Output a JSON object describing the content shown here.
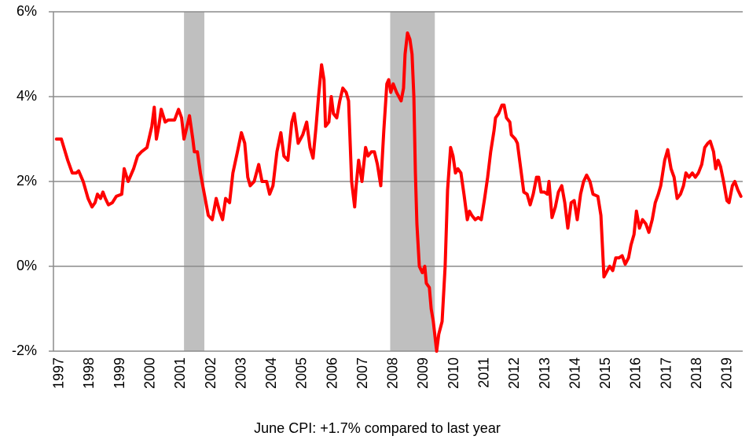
{
  "chart_data": {
    "type": "line",
    "caption": "June CPI: +1.7% compared to last year",
    "xlim": [
      1996.9,
      2019.6
    ],
    "xticks": [
      1997,
      1998,
      1999,
      2000,
      2001,
      2002,
      2003,
      2004,
      2005,
      2006,
      2007,
      2008,
      2009,
      2010,
      2011,
      2012,
      2013,
      2014,
      2015,
      2016,
      2017,
      2018,
      2019
    ],
    "ylim": [
      -2,
      6
    ],
    "yticks": [
      {
        "value": -2,
        "label": "-2%"
      },
      {
        "value": 0,
        "label": "0%"
      },
      {
        "value": 2,
        "label": "2%"
      },
      {
        "value": 4,
        "label": "4%"
      },
      {
        "value": 6,
        "label": "6%"
      }
    ],
    "grid": true,
    "shaded_regions": [
      [
        2001.2,
        2001.87
      ],
      [
        2007.99,
        2009.46
      ]
    ],
    "shade_color": "#bfbfbf",
    "series": [
      {
        "color": "#ff0000",
        "x": [
          1997.0,
          1997.16,
          1997.37,
          1997.52,
          1997.65,
          1997.73,
          1997.88,
          1998.04,
          1998.17,
          1998.27,
          1998.35,
          1998.45,
          1998.53,
          1998.61,
          1998.71,
          1998.84,
          1998.97,
          1999.15,
          1999.23,
          1999.36,
          1999.54,
          1999.67,
          1999.8,
          1999.98,
          2000.14,
          2000.22,
          2000.29,
          2000.37,
          2000.45,
          2000.58,
          2000.68,
          2000.89,
          2001.02,
          2001.12,
          2001.2,
          2001.3,
          2001.38,
          2001.49,
          2001.54,
          2001.64,
          2001.74,
          2001.87,
          2002.0,
          2002.13,
          2002.26,
          2002.37,
          2002.47,
          2002.57,
          2002.7,
          2002.81,
          2002.96,
          2003.09,
          2003.2,
          2003.3,
          2003.38,
          2003.51,
          2003.66,
          2003.77,
          2003.92,
          2004.02,
          2004.13,
          2004.26,
          2004.39,
          2004.49,
          2004.62,
          2004.75,
          2004.83,
          2004.96,
          2005.11,
          2005.24,
          2005.35,
          2005.45,
          2005.55,
          2005.63,
          2005.73,
          2005.81,
          2005.86,
          2005.97,
          2006.05,
          2006.12,
          2006.23,
          2006.33,
          2006.43,
          2006.54,
          2006.62,
          2006.72,
          2006.82,
          2006.87,
          2006.95,
          2007.06,
          2007.18,
          2007.26,
          2007.37,
          2007.47,
          2007.57,
          2007.68,
          2007.78,
          2007.88,
          2007.94,
          2008.01,
          2008.09,
          2008.2,
          2008.35,
          2008.43,
          2008.48,
          2008.56,
          2008.64,
          2008.71,
          2008.77,
          2008.82,
          2008.87,
          2008.95,
          2009.05,
          2009.13,
          2009.18,
          2009.28,
          2009.34,
          2009.41,
          2009.52,
          2009.59,
          2009.7,
          2009.8,
          2009.88,
          2009.98,
          2010.06,
          2010.14,
          2010.22,
          2010.32,
          2010.42,
          2010.53,
          2010.6,
          2010.68,
          2010.79,
          2010.89,
          2010.99,
          2011.1,
          2011.2,
          2011.3,
          2011.41,
          2011.46,
          2011.56,
          2011.67,
          2011.74,
          2011.82,
          2011.93,
          2011.98,
          2012.11,
          2012.18,
          2012.29,
          2012.39,
          2012.5,
          2012.6,
          2012.7,
          2012.81,
          2012.88,
          2012.96,
          2013.07,
          2013.17,
          2013.22,
          2013.32,
          2013.43,
          2013.53,
          2013.64,
          2013.74,
          2013.84,
          2013.95,
          2014.05,
          2014.15,
          2014.26,
          2014.36,
          2014.46,
          2014.57,
          2014.67,
          2014.83,
          2014.93,
          2015.03,
          2015.14,
          2015.22,
          2015.32,
          2015.42,
          2015.53,
          2015.63,
          2015.73,
          2015.84,
          2015.92,
          2016.02,
          2016.1,
          2016.2,
          2016.3,
          2016.41,
          2016.51,
          2016.62,
          2016.72,
          2016.82,
          2016.9,
          2017.03,
          2017.13,
          2017.24,
          2017.34,
          2017.44,
          2017.55,
          2017.65,
          2017.73,
          2017.83,
          2017.94,
          2018.04,
          2018.14,
          2018.25,
          2018.35,
          2018.45,
          2018.53,
          2018.64,
          2018.71,
          2018.79,
          2018.87,
          2018.97,
          2019.08,
          2019.15,
          2019.26,
          2019.34,
          2019.44,
          2019.54
        ],
        "values": [
          3.0,
          3.0,
          2.5,
          2.2,
          2.2,
          2.25,
          2.0,
          1.6,
          1.4,
          1.5,
          1.7,
          1.6,
          1.75,
          1.6,
          1.45,
          1.5,
          1.65,
          1.7,
          2.3,
          2.0,
          2.3,
          2.6,
          2.7,
          2.8,
          3.3,
          3.75,
          3.0,
          3.3,
          3.7,
          3.4,
          3.45,
          3.45,
          3.7,
          3.5,
          3.0,
          3.3,
          3.55,
          3.0,
          2.7,
          2.7,
          2.2,
          1.7,
          1.2,
          1.1,
          1.6,
          1.3,
          1.1,
          1.6,
          1.5,
          2.2,
          2.7,
          3.15,
          2.9,
          2.1,
          1.9,
          2.0,
          2.4,
          2.0,
          2.0,
          1.7,
          1.9,
          2.7,
          3.15,
          2.6,
          2.5,
          3.4,
          3.6,
          2.9,
          3.1,
          3.4,
          2.8,
          2.55,
          3.3,
          4.0,
          4.75,
          4.4,
          3.3,
          3.4,
          4.0,
          3.6,
          3.5,
          3.9,
          4.2,
          4.1,
          3.9,
          2.0,
          1.4,
          1.9,
          2.5,
          2.0,
          2.8,
          2.6,
          2.7,
          2.7,
          2.4,
          1.9,
          3.2,
          4.3,
          4.4,
          4.1,
          4.3,
          4.1,
          3.9,
          4.2,
          5.0,
          5.5,
          5.35,
          5.0,
          4.0,
          2.2,
          1.0,
          0.0,
          -0.15,
          0.0,
          -0.4,
          -0.5,
          -1.0,
          -1.3,
          -2.0,
          -1.6,
          -1.3,
          0.0,
          1.8,
          2.8,
          2.6,
          2.2,
          2.3,
          2.2,
          1.7,
          1.1,
          1.3,
          1.2,
          1.1,
          1.15,
          1.1,
          1.6,
          2.1,
          2.7,
          3.2,
          3.5,
          3.6,
          3.8,
          3.8,
          3.5,
          3.4,
          3.1,
          3.0,
          2.9,
          2.3,
          1.75,
          1.7,
          1.45,
          1.7,
          2.1,
          2.1,
          1.75,
          1.75,
          1.7,
          2.0,
          1.15,
          1.4,
          1.75,
          1.9,
          1.5,
          0.9,
          1.5,
          1.55,
          1.1,
          1.7,
          2.0,
          2.15,
          2.0,
          1.7,
          1.65,
          1.2,
          -0.25,
          -0.1,
          0.0,
          -0.1,
          0.2,
          0.2,
          0.25,
          0.05,
          0.2,
          0.5,
          0.75,
          1.3,
          0.9,
          1.1,
          1.0,
          0.8,
          1.1,
          1.5,
          1.7,
          1.9,
          2.5,
          2.75,
          2.3,
          2.1,
          1.6,
          1.7,
          1.9,
          2.2,
          2.1,
          2.2,
          2.1,
          2.2,
          2.4,
          2.8,
          2.9,
          2.95,
          2.7,
          2.3,
          2.5,
          2.35,
          2.0,
          1.55,
          1.5,
          1.9,
          2.0,
          1.8,
          1.65
        ]
      }
    ]
  }
}
